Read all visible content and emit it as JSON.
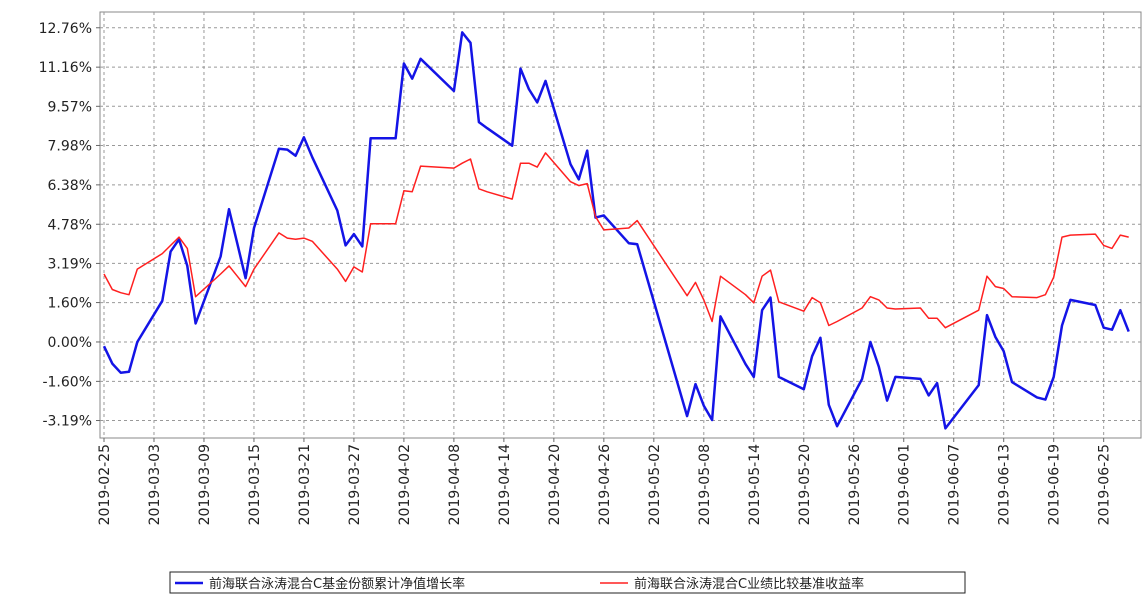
{
  "chart_data": {
    "type": "line",
    "x": [
      "2019-02-25",
      "2019-02-26",
      "2019-02-27",
      "2019-02-28",
      "2019-03-01",
      "2019-03-04",
      "2019-03-05",
      "2019-03-06",
      "2019-03-07",
      "2019-03-08",
      "2019-03-11",
      "2019-03-12",
      "2019-03-13",
      "2019-03-14",
      "2019-03-15",
      "2019-03-18",
      "2019-03-19",
      "2019-03-20",
      "2019-03-21",
      "2019-03-22",
      "2019-03-25",
      "2019-03-26",
      "2019-03-27",
      "2019-03-28",
      "2019-03-29",
      "2019-04-01",
      "2019-04-02",
      "2019-04-03",
      "2019-04-04",
      "2019-04-08",
      "2019-04-09",
      "2019-04-10",
      "2019-04-11",
      "2019-04-12",
      "2019-04-15",
      "2019-04-16",
      "2019-04-17",
      "2019-04-18",
      "2019-04-19",
      "2019-04-22",
      "2019-04-23",
      "2019-04-24",
      "2019-04-25",
      "2019-04-26",
      "2019-04-29",
      "2019-04-30",
      "2019-05-06",
      "2019-05-07",
      "2019-05-08",
      "2019-05-09",
      "2019-05-10",
      "2019-05-13",
      "2019-05-14",
      "2019-05-15",
      "2019-05-16",
      "2019-05-17",
      "2019-05-20",
      "2019-05-21",
      "2019-05-22",
      "2019-05-23",
      "2019-05-24",
      "2019-05-27",
      "2019-05-28",
      "2019-05-29",
      "2019-05-30",
      "2019-05-31",
      "2019-06-03",
      "2019-06-04",
      "2019-06-05",
      "2019-06-06",
      "2019-06-10",
      "2019-06-11",
      "2019-06-12",
      "2019-06-13",
      "2019-06-14",
      "2019-06-17",
      "2019-06-18",
      "2019-06-19",
      "2019-06-20",
      "2019-06-21",
      "2019-06-24",
      "2019-06-25",
      "2019-06-26",
      "2019-06-27",
      "2019-06-28"
    ],
    "series": [
      {
        "name": "前海联合泳涛混合C基金份额累计净值增长率",
        "color": "#1414e6",
        "values": [
          -0.17,
          -0.88,
          -1.25,
          -1.21,
          0.0,
          1.67,
          3.67,
          4.17,
          3.09,
          0.75,
          3.47,
          5.39,
          4.0,
          2.59,
          4.63,
          7.85,
          7.81,
          7.56,
          8.31,
          7.5,
          5.34,
          3.92,
          4.38,
          3.88,
          8.27,
          8.27,
          11.31,
          10.69,
          11.5,
          10.19,
          12.57,
          12.15,
          8.93,
          8.68,
          7.97,
          11.1,
          10.27,
          9.73,
          10.6,
          7.22,
          6.6,
          7.77,
          5.05,
          5.14,
          4.01,
          3.97,
          -3.01,
          -1.71,
          -2.59,
          -3.17,
          1.04,
          -0.9,
          -1.42,
          1.29,
          1.8,
          -1.42,
          -1.92,
          -0.58,
          0.17,
          -2.55,
          -3.42,
          -1.5,
          0.0,
          -1.0,
          -2.38,
          -1.42,
          -1.5,
          -2.17,
          -1.67,
          -3.51,
          -1.75,
          1.09,
          0.2,
          -0.38,
          -1.63,
          -2.25,
          -2.34,
          -1.42,
          0.67,
          1.71,
          1.5,
          0.58,
          0.5,
          1.29,
          0.42
        ]
      },
      {
        "name": "前海联合泳涛混合C业绩比较基准收益率",
        "color": "#ff2020",
        "values": [
          2.76,
          2.13,
          2.0,
          1.92,
          2.96,
          3.59,
          3.92,
          4.26,
          3.8,
          1.84,
          2.76,
          3.09,
          2.67,
          2.25,
          2.96,
          4.43,
          4.22,
          4.17,
          4.22,
          4.09,
          2.96,
          2.46,
          3.05,
          2.84,
          4.8,
          4.8,
          6.14,
          6.1,
          7.14,
          7.06,
          7.26,
          7.43,
          6.22,
          6.1,
          5.8,
          7.26,
          7.26,
          7.1,
          7.68,
          6.51,
          6.35,
          6.43,
          5.09,
          4.55,
          4.63,
          4.93,
          1.88,
          2.42,
          1.71,
          0.83,
          2.67,
          1.92,
          1.59,
          2.67,
          2.92,
          1.63,
          1.25,
          1.8,
          1.59,
          0.67,
          0.83,
          1.38,
          1.84,
          1.71,
          1.38,
          1.34,
          1.38,
          0.96,
          0.96,
          0.58,
          1.29,
          2.67,
          2.25,
          2.17,
          1.84,
          1.8,
          1.92,
          2.63,
          4.26,
          4.34,
          4.38,
          3.92,
          3.8,
          4.34,
          4.26
        ]
      }
    ],
    "xlim": [
      "2019-02-25",
      "2019-06-29"
    ],
    "xticks": [
      "2019-02-25",
      "2019-03-03",
      "2019-03-09",
      "2019-03-15",
      "2019-03-21",
      "2019-03-27",
      "2019-04-02",
      "2019-04-08",
      "2019-04-14",
      "2019-04-20",
      "2019-04-26",
      "2019-05-02",
      "2019-05-08",
      "2019-05-14",
      "2019-05-20",
      "2019-05-26",
      "2019-06-01",
      "2019-06-07",
      "2019-06-13",
      "2019-06-19",
      "2019-06-25"
    ],
    "ylim": [
      -3.9,
      13.4
    ],
    "yticks": [
      {
        "value": 12.76,
        "label": "12.76%"
      },
      {
        "value": 11.16,
        "label": "11.16%"
      },
      {
        "value": 9.57,
        "label": "9.57%"
      },
      {
        "value": 7.98,
        "label": "7.98%"
      },
      {
        "value": 6.38,
        "label": "6.38%"
      },
      {
        "value": 4.78,
        "label": "4.78%"
      },
      {
        "value": 3.19,
        "label": "3.19%"
      },
      {
        "value": 1.6,
        "label": "1.60%"
      },
      {
        "value": 0.0,
        "label": "0.00%"
      },
      {
        "value": -1.6,
        "label": "-1.60%"
      },
      {
        "value": -3.19,
        "label": "-3.19%"
      }
    ],
    "grid": true
  }
}
